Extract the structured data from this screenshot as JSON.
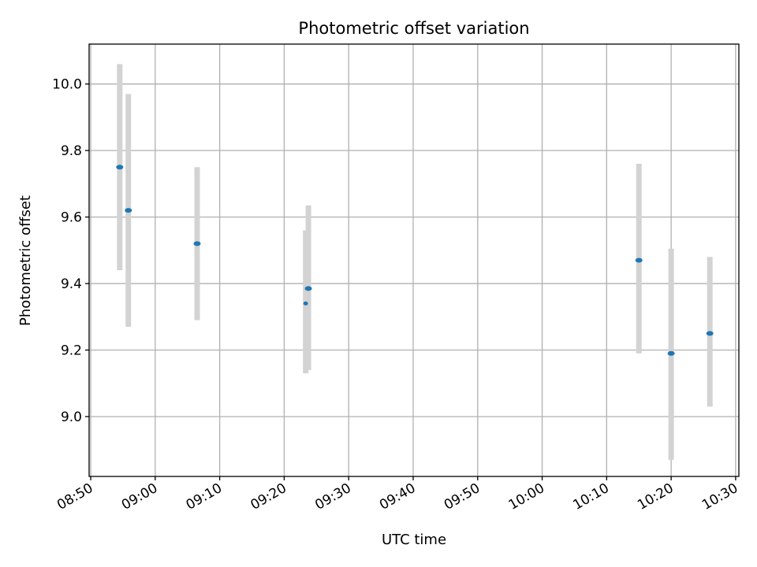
{
  "chart_data": {
    "type": "scatter",
    "title": "Photometric offset variation",
    "xlabel": "UTC time",
    "ylabel": "Photometric offset",
    "xlim": [
      "08:49:45",
      "10:30:30"
    ],
    "ylim": [
      8.82,
      10.12
    ],
    "grid": true,
    "x_ticks": [
      "08:50",
      "09:00",
      "09:10",
      "09:20",
      "09:30",
      "09:40",
      "09:50",
      "10:00",
      "10:10",
      "10:20",
      "10:30"
    ],
    "y_ticks": [
      9.0,
      9.2,
      9.4,
      9.6,
      9.8,
      10.0
    ],
    "y_tick_labels": [
      "9.0",
      "9.2",
      "9.4",
      "9.6",
      "9.8",
      "10.0"
    ],
    "marker_color": "#1f77b4",
    "errorbar_color": "#d3d3d3",
    "points": [
      {
        "x": "08:54:30",
        "y": 9.75,
        "low": 9.44,
        "high": 10.06
      },
      {
        "x": "08:55:50",
        "y": 9.62,
        "low": 9.27,
        "high": 9.97
      },
      {
        "x": "09:06:30",
        "y": 9.52,
        "low": 9.29,
        "high": 9.75
      },
      {
        "x": "09:23:20",
        "y": 9.34,
        "low": 9.13,
        "high": 9.56
      },
      {
        "x": "09:23:45",
        "y": 9.385,
        "low": 9.14,
        "high": 9.635
      },
      {
        "x": "10:15:00",
        "y": 9.47,
        "low": 9.19,
        "high": 9.76
      },
      {
        "x": "10:20:00",
        "y": 9.19,
        "low": 8.87,
        "high": 9.505
      },
      {
        "x": "10:26:00",
        "y": 9.25,
        "low": 9.03,
        "high": 9.48
      }
    ]
  }
}
